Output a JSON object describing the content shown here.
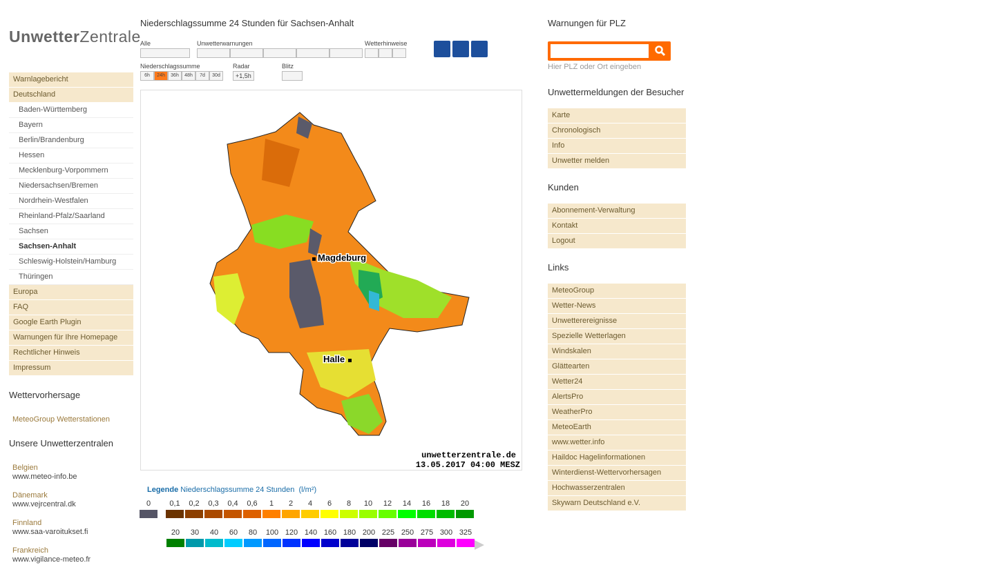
{
  "logo": {
    "bold": "Unwetter",
    "light": "Zentrale"
  },
  "nav": {
    "top": [
      "Warnlagebericht",
      "Deutschland"
    ],
    "states": [
      "Baden-Württemberg",
      "Bayern",
      "Berlin/Brandenburg",
      "Hessen",
      "Mecklenburg-Vorpommern",
      "Niedersachsen/Bremen",
      "Nordrhein-Westfalen",
      "Rheinland-Pfalz/Saarland",
      "Sachsen",
      "Sachsen-Anhalt",
      "Schleswig-Holstein/Hamburg",
      "Thüringen"
    ],
    "bottom": [
      "Europa",
      "FAQ",
      "Google Earth Plugin",
      "Warnungen für Ihre Homepage",
      "Rechtlicher Hinweis",
      "Impressum"
    ]
  },
  "forecast": {
    "heading": "Wettervorhersage",
    "link": "MeteoGroup Wetterstationen"
  },
  "centrals": {
    "heading": "Unsere Unwetterzentralen",
    "items": [
      {
        "country": "Belgien",
        "url": "www.meteo-info.be"
      },
      {
        "country": "Dänemark",
        "url": "www.vejrcentral.dk"
      },
      {
        "country": "Finnland",
        "url": "www.saa-varoitukset.fi"
      },
      {
        "country": "Frankreich",
        "url": "www.vigilance-meteo.fr"
      }
    ]
  },
  "main": {
    "title": "Niederschlagssumme 24 Stunden für Sachsen-Anhalt",
    "groups": {
      "all": "Alle",
      "warnings": "Unwetterwarnungen",
      "hints": "Wetterhinweise",
      "precip": "Niederschlagssumme",
      "radar": "Radar",
      "lightning": "Blitz"
    },
    "precip_buttons": [
      "6h",
      "24h",
      "36h",
      "48h",
      "7d",
      "30d"
    ],
    "radar_button": "+1,5h",
    "map": {
      "cities": [
        "Magdeburg",
        "Halle"
      ],
      "credit": "unwetterzentrale.de",
      "timestamp": "13.05.2017 04:00 MESZ"
    },
    "legend": {
      "label": "Legende",
      "title": "Niederschlagssumme 24 Stunden",
      "unit": "(l/m²)",
      "row1": {
        "labels": [
          "0",
          "0,1",
          "0,2",
          "0,3",
          "0,4",
          "0,6",
          "1",
          "2",
          "4",
          "6",
          "8",
          "10",
          "12",
          "14",
          "16",
          "18",
          "20"
        ],
        "colors": [
          "#555566",
          "#6b3300",
          "#8c3f00",
          "#aa4a00",
          "#c45500",
          "#dd6000",
          "#ff8000",
          "#ffa500",
          "#ffcc00",
          "#ffff00",
          "#ccff00",
          "#99ff00",
          "#66ff00",
          "#00ff00",
          "#00dd00",
          "#00bb00",
          "#009900"
        ]
      },
      "row2": {
        "labels": [
          "20",
          "30",
          "40",
          "60",
          "80",
          "100",
          "120",
          "140",
          "160",
          "180",
          "200",
          "225",
          "250",
          "275",
          "300",
          "325"
        ],
        "colors": [
          "#008000",
          "#0099aa",
          "#00bbcc",
          "#00ccff",
          "#0099ff",
          "#0066ff",
          "#0033ff",
          "#0000ff",
          "#0000cc",
          "#000099",
          "#000066",
          "#660066",
          "#990099",
          "#bb00bb",
          "#dd00dd",
          "#ff00ff"
        ]
      }
    }
  },
  "right": {
    "plz_heading": "Warnungen für PLZ",
    "plz_hint": "Hier PLZ oder Ort eingeben",
    "visitors": {
      "heading": "Unwettermeldungen der Besucher",
      "items": [
        "Karte",
        "Chronologisch",
        "Info",
        "Unwetter melden"
      ]
    },
    "customers": {
      "heading": "Kunden",
      "items": [
        "Abonnement-Verwaltung",
        "Kontakt",
        "Logout"
      ]
    },
    "links": {
      "heading": "Links",
      "items": [
        "MeteoGroup",
        "Wetter-News",
        "Unwetterereignisse",
        "Spezielle Wetterlagen",
        "Windskalen",
        "Glättearten",
        "Wetter24",
        "AlertsPro",
        "WeatherPro",
        "MeteoEarth",
        "www.wetter.info",
        "Haildoc Hagelinformationen",
        "Winterdienst-Wettervorhersagen",
        "Hochwasserzentralen",
        "Skywarn Deutschland e.V."
      ]
    }
  }
}
